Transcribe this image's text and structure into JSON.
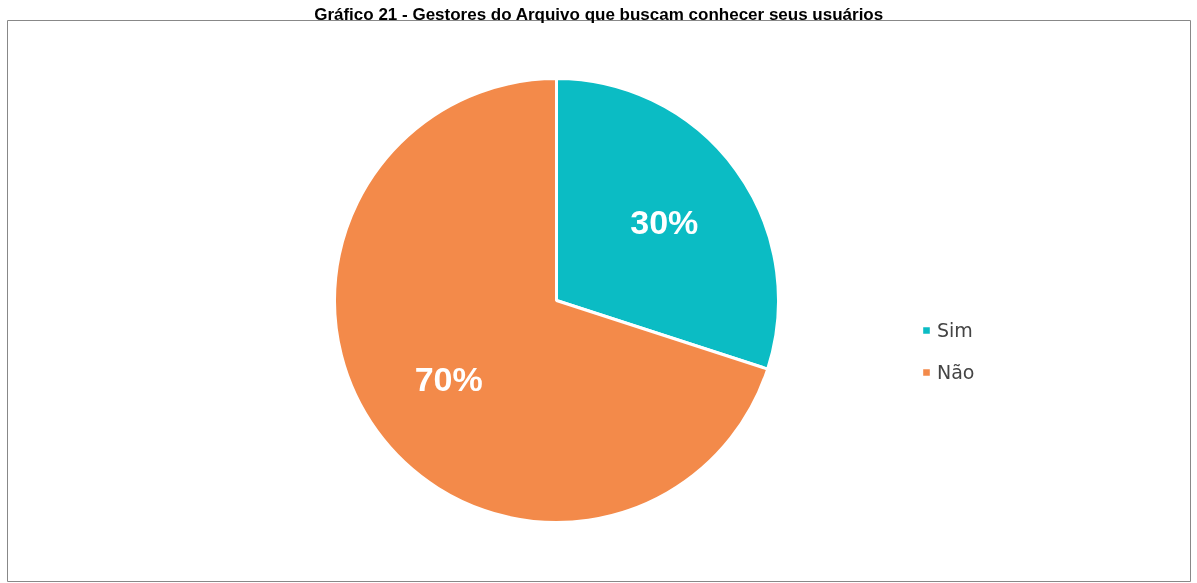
{
  "chart_data": {
    "type": "pie",
    "title": "Gráfico 21 - Gestores do Arquivo que buscam conhecer seus usuários",
    "categories": [
      "Sim",
      "Não"
    ],
    "values": [
      30,
      70
    ],
    "colors": [
      "#0bbcc4",
      "#f38a4a"
    ],
    "value_labels": [
      "30%",
      "70%"
    ],
    "legend": "right"
  }
}
